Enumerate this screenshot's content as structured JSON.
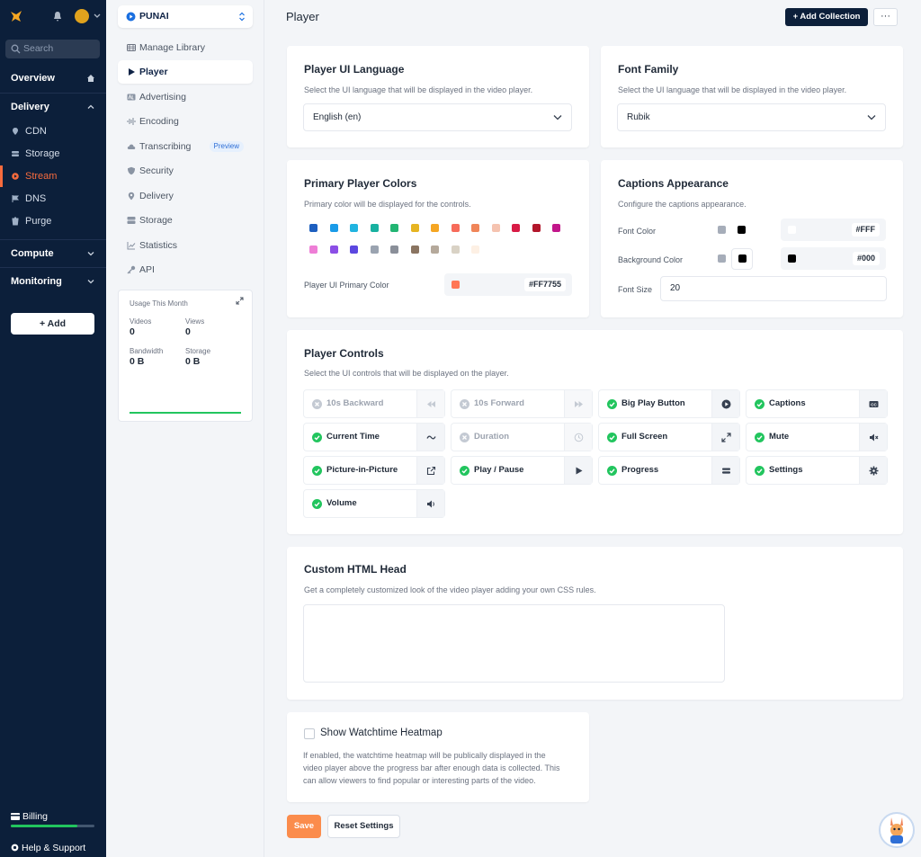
{
  "nav": {
    "search_placeholder": "Search",
    "overview": "Overview",
    "delivery": "Delivery",
    "delivery_items": [
      "CDN",
      "Storage",
      "Stream",
      "DNS",
      "Purge"
    ],
    "compute": "Compute",
    "monitoring": "Monitoring",
    "add_button": "+ Add",
    "billing": "Billing",
    "help": "Help & Support",
    "accent": "#f76b3d"
  },
  "side": {
    "library": "PUNAI",
    "items": [
      "Manage Library",
      "Player",
      "Advertising",
      "Encoding",
      "Transcribing",
      "Security",
      "Delivery",
      "Storage",
      "Statistics",
      "API"
    ],
    "preview_badge": "Preview",
    "usage": {
      "title": "Usage This Month",
      "videos_label": "Videos",
      "videos_value": "0",
      "views_label": "Views",
      "views_value": "0",
      "bandwidth_label": "Bandwidth",
      "bandwidth_value": "0 B",
      "storage_label": "Storage",
      "storage_value": "0 B"
    }
  },
  "header": {
    "title": "Player",
    "add_collection": "+ Add Collection",
    "more": "···"
  },
  "ui_language": {
    "title": "Player UI Language",
    "desc": "Select the UI language that will be displayed in the video player.",
    "value": "English (en)"
  },
  "font_family": {
    "title": "Font Family",
    "desc": "Select the UI language that will be displayed in the video player.",
    "value": "Rubik"
  },
  "primary_colors": {
    "title": "Primary Player Colors",
    "desc": "Primary color will be displayed for the controls.",
    "swatches_row1": [
      "#1d5fbf",
      "#1a9be8",
      "#21b4e0",
      "#18b1a0",
      "#22b573",
      "#e6b422",
      "#f5a623",
      "#f76b5a",
      "#f08559",
      "#f5c3b0",
      "#d81b45",
      "#b2162b",
      "#c2168a"
    ],
    "swatches_row2": [
      "#ee7ed6",
      "#8b4ee6",
      "#5b47e0",
      "#9aa3b0",
      "#8a8f99",
      "#8a7461",
      "#b5a99b",
      "#d9d2c5",
      "#fdf0e4"
    ],
    "label": "Player UI Primary Color",
    "hex": "#FF7755",
    "hex_color": "#ff7755"
  },
  "captions": {
    "title": "Captions Appearance",
    "desc": "Configure the captions appearance.",
    "font_color_label": "Font Color",
    "font_color_hex": "#FFF",
    "bg_color_label": "Background Color",
    "bg_color_hex": "#000",
    "font_size_label": "Font Size",
    "font_size_value": "20"
  },
  "controls": {
    "title": "Player Controls",
    "desc": "Select the UI controls that will be displayed on the player.",
    "items": [
      {
        "label": "10s Backward",
        "enabled": false,
        "icon": "rewind-icon"
      },
      {
        "label": "10s Forward",
        "enabled": false,
        "icon": "fast-forward-icon"
      },
      {
        "label": "Big Play Button",
        "enabled": true,
        "icon": "play-circle-icon"
      },
      {
        "label": "Captions",
        "enabled": true,
        "icon": "cc-icon"
      },
      {
        "label": "Current Time",
        "enabled": true,
        "icon": "tilde-icon"
      },
      {
        "label": "Duration",
        "enabled": false,
        "icon": "clock-icon"
      },
      {
        "label": "Full Screen",
        "enabled": true,
        "icon": "expand-icon"
      },
      {
        "label": "Mute",
        "enabled": true,
        "icon": "mute-icon"
      },
      {
        "label": "Picture-in-Picture",
        "enabled": true,
        "icon": "external-link-icon"
      },
      {
        "label": "Play / Pause",
        "enabled": true,
        "icon": "play-icon"
      },
      {
        "label": "Progress",
        "enabled": true,
        "icon": "progress-icon"
      },
      {
        "label": "Settings",
        "enabled": true,
        "icon": "gear-icon"
      },
      {
        "label": "Volume",
        "enabled": true,
        "icon": "volume-icon"
      }
    ]
  },
  "custom_head": {
    "title": "Custom HTML Head",
    "desc": "Get a completely customized look of the video player adding your own CSS rules.",
    "value": ""
  },
  "heatmap": {
    "title": "Show Watchtime Heatmap",
    "desc1": "If enabled, the watchtime heatmap will be publically displayed in the",
    "desc2": "video player above the progress bar after enough data is collected. This",
    "desc3": "can allow viewers to find popular or interesting parts of the video."
  },
  "footer": {
    "save": "Save",
    "reset": "Reset Settings"
  }
}
